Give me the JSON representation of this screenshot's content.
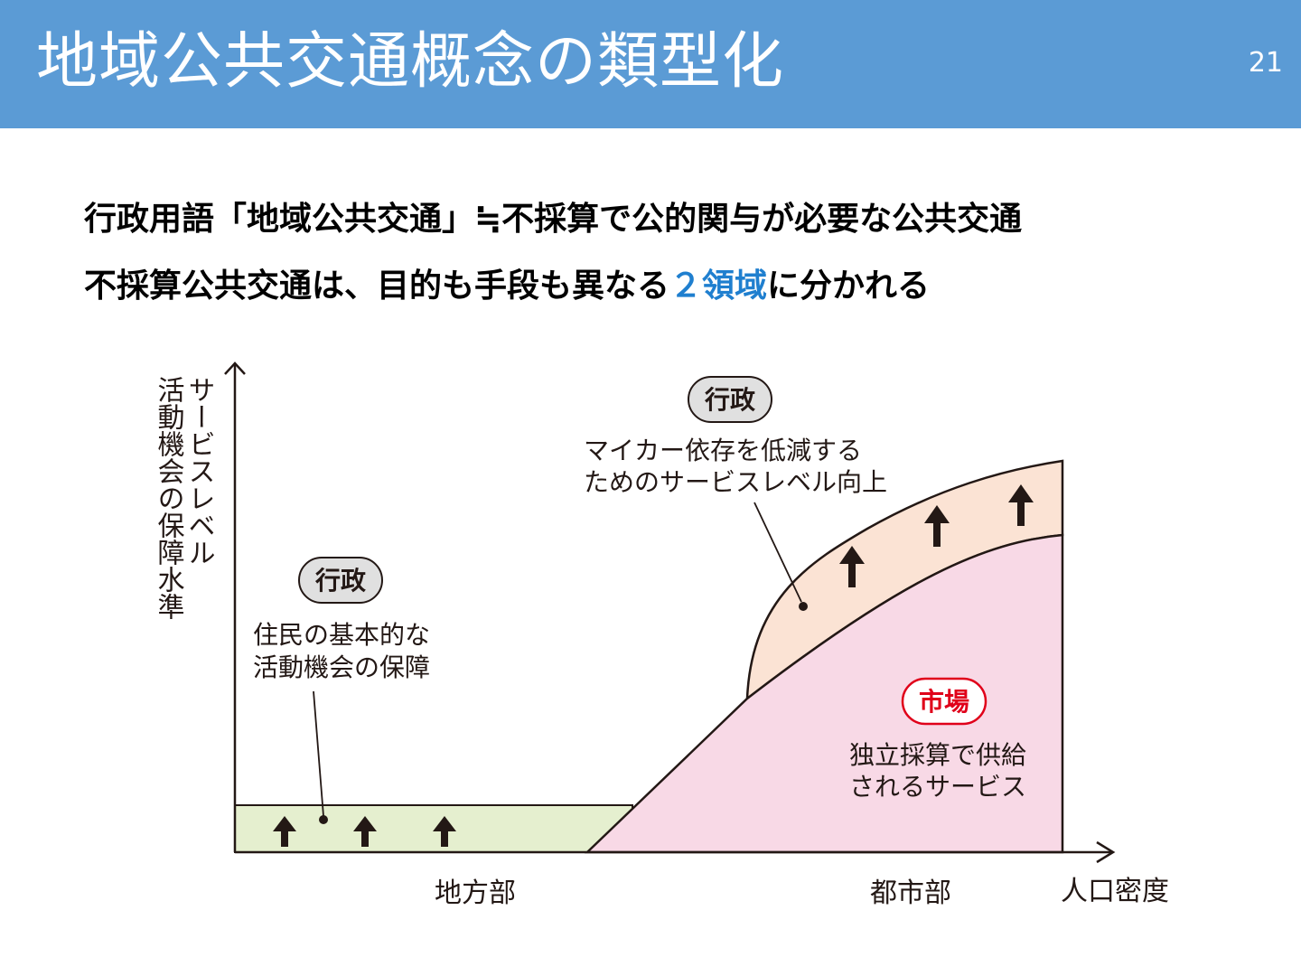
{
  "header": {
    "title": "地域公共交通概念の類型化",
    "page_number": "21"
  },
  "subtitles": {
    "line1": "行政用語「地域公共交通」≒不採算で公的関与が必要な公共交通",
    "line2_before": "不採算公共交通は、目的も手段も異なる",
    "line2_highlight": "２領域",
    "line2_after": "に分かれる"
  },
  "diagram": {
    "y_axis_label_col1": "サービスレベル",
    "y_axis_label_col2": "活動機会の保障水準",
    "x_axis_label": "人口密度",
    "x_tick_rural": "地方部",
    "x_tick_urban": "都市部",
    "gov_pill_left": "行政",
    "gov_left_line1": "住民の基本的な",
    "gov_left_line2": "活動機会の保障",
    "gov_pill_right": "行政",
    "gov_right_line1": "マイカー依存を低減する",
    "gov_right_line2": "ためのサービスレベル向上",
    "market_pill": "市場",
    "market_line1": "独立採算で供給",
    "market_line2": "されるサービス"
  },
  "colors": {
    "header_bg": "#5b9bd5",
    "highlight": "#1f7fcf",
    "rural_band": "#e5efcf",
    "market_area": "#f8d9e6",
    "upper_band": "#fbe3d4",
    "market_pill_border": "#e0001a",
    "gov_pill_fill": "#e0e0e0"
  }
}
